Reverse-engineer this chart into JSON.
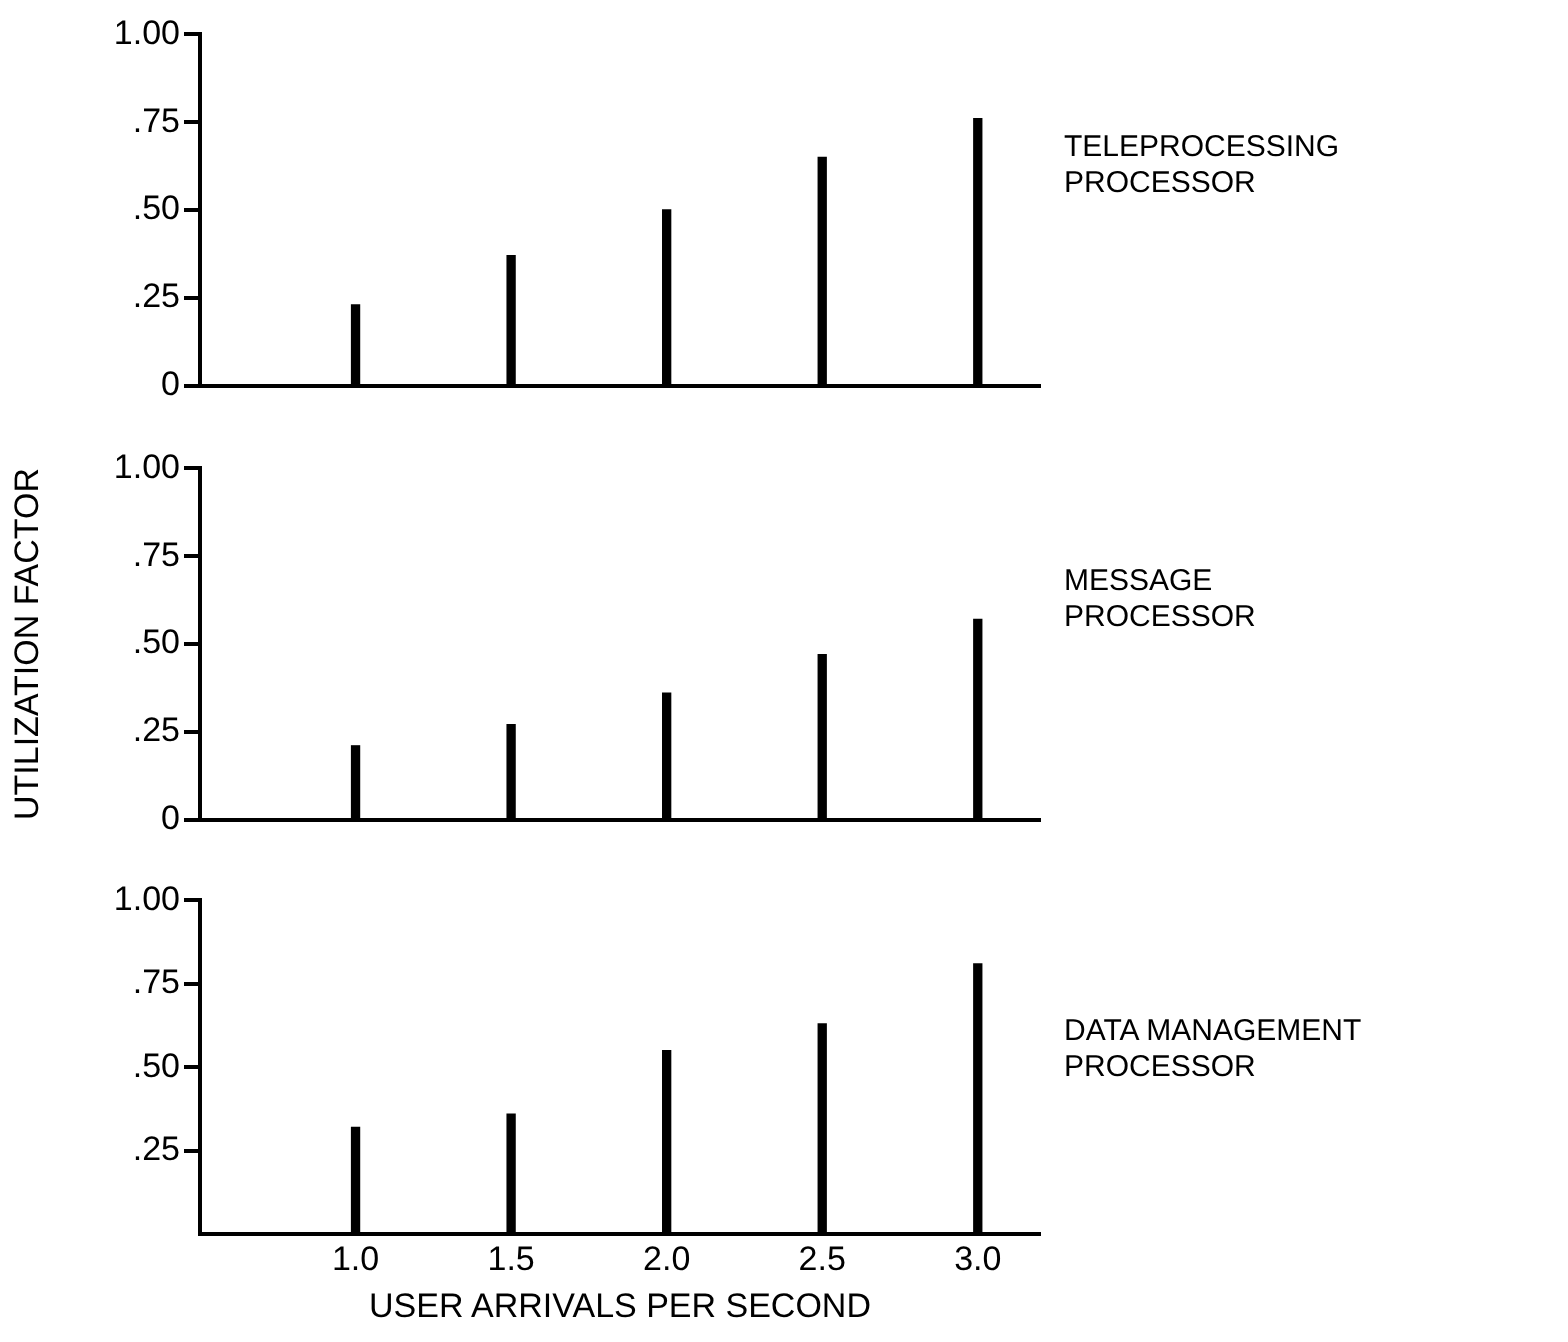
{
  "chart_data": [
    {
      "type": "bar",
      "x": [
        1.0,
        1.5,
        2.0,
        2.5,
        3.0
      ],
      "xlim": [
        0.5,
        3.2
      ],
      "ylim": [
        0,
        1
      ],
      "yticks": [
        {
          "value": 0,
          "label": "0"
        },
        {
          "value": 0.25,
          "label": ".25"
        },
        {
          "value": 0.5,
          "label": ".50"
        },
        {
          "value": 0.75,
          "label": ".75"
        },
        {
          "value": 1,
          "label": "1.00"
        }
      ],
      "grid": false,
      "tick_labels": "y",
      "series": [
        {
          "name": "TELEPROCESSING PROCESSOR",
          "color": "#000000",
          "values": [
            0.23,
            0.37,
            0.5,
            0.65,
            0.76
          ]
        }
      ]
    },
    {
      "type": "bar",
      "ylabel": "UTILIZATION FACTOR",
      "x": [
        1.0,
        1.5,
        2.0,
        2.5,
        3.0
      ],
      "xlim": [
        0.5,
        3.2
      ],
      "ylim": [
        0,
        1
      ],
      "yticks": [
        {
          "value": 0,
          "label": "0"
        },
        {
          "value": 0.25,
          "label": ".25"
        },
        {
          "value": 0.5,
          "label": ".50"
        },
        {
          "value": 0.75,
          "label": ".75"
        },
        {
          "value": 1,
          "label": "1.00"
        }
      ],
      "grid": false,
      "tick_labels": "y",
      "series": [
        {
          "name": "MESSAGE PROCESSOR",
          "color": "#000000",
          "values": [
            0.21,
            0.27,
            0.36,
            0.47,
            0.57
          ]
        }
      ]
    },
    {
      "type": "bar",
      "xlabel": "USER ARRIVALS PER SECOND",
      "x": [
        1.0,
        1.5,
        2.0,
        2.5,
        3.0
      ],
      "xlim": [
        0.5,
        3.2
      ],
      "xticks": [
        {
          "value": 1,
          "label": "1.0"
        },
        {
          "value": 1.5,
          "label": "1.5"
        },
        {
          "value": 2,
          "label": "2.0"
        },
        {
          "value": 2.5,
          "label": "2.5"
        },
        {
          "value": 3,
          "label": "3.0"
        }
      ],
      "ylim": [
        0,
        1
      ],
      "yticks": [
        {
          "value": 0.25,
          "label": ".25"
        },
        {
          "value": 0.5,
          "label": ".50"
        },
        {
          "value": 0.75,
          "label": ".75"
        },
        {
          "value": 1,
          "label": "1.00"
        }
      ],
      "grid": false,
      "series": [
        {
          "name": "DATA MANAGEMENT PROCESSOR",
          "color": "#000000",
          "values": [
            0.32,
            0.36,
            0.55,
            0.63,
            0.81
          ]
        }
      ]
    }
  ]
}
